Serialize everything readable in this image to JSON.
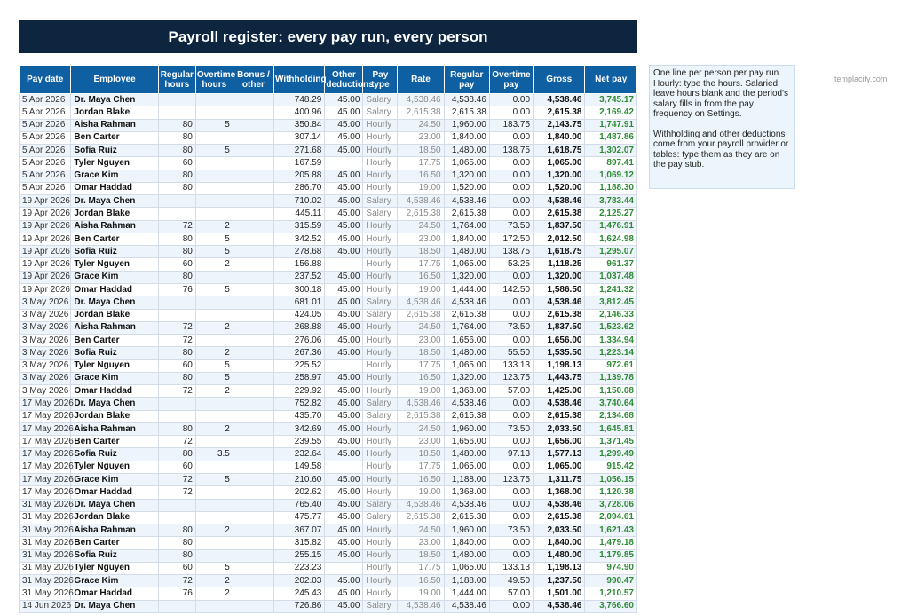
{
  "title": "Payroll register: every pay run, every person",
  "brand": "templacity.com",
  "note": {
    "p1": "One line per person per pay run. Hourly: type the hours. Salaried: leave hours blank and the period's salary fills in from the pay frequency on Settings.",
    "p2": "Withholding and other deductions come from your payroll provider or tables: type them as they are on the pay stub."
  },
  "table": {
    "headers": [
      "Pay date",
      "Employee",
      "Regular hours",
      "Overtime hours",
      "Bonus / other",
      "Withholding",
      "Other deductions",
      "Pay type",
      "Rate",
      "Regular pay",
      "Overtime pay",
      "Gross",
      "Net pay"
    ],
    "rows": [
      [
        "5 Apr 2026",
        "Dr. Maya Chen",
        "",
        "",
        "",
        "748.29",
        "45.00",
        "Salary",
        "4,538.46",
        "4,538.46",
        "0.00",
        "4,538.46",
        "3,745.17"
      ],
      [
        "5 Apr 2026",
        "Jordan Blake",
        "",
        "",
        "",
        "400.96",
        "45.00",
        "Salary",
        "2,615.38",
        "2,615.38",
        "0.00",
        "2,615.38",
        "2,169.42"
      ],
      [
        "5 Apr 2026",
        "Aisha Rahman",
        "80",
        "5",
        "",
        "350.84",
        "45.00",
        "Hourly",
        "24.50",
        "1,960.00",
        "183.75",
        "2,143.75",
        "1,747.91"
      ],
      [
        "5 Apr 2026",
        "Ben Carter",
        "80",
        "",
        "",
        "307.14",
        "45.00",
        "Hourly",
        "23.00",
        "1,840.00",
        "0.00",
        "1,840.00",
        "1,487.86"
      ],
      [
        "5 Apr 2026",
        "Sofia Ruiz",
        "80",
        "5",
        "",
        "271.68",
        "45.00",
        "Hourly",
        "18.50",
        "1,480.00",
        "138.75",
        "1,618.75",
        "1,302.07"
      ],
      [
        "5 Apr 2026",
        "Tyler Nguyen",
        "60",
        "",
        "",
        "167.59",
        "",
        "Hourly",
        "17.75",
        "1,065.00",
        "0.00",
        "1,065.00",
        "897.41"
      ],
      [
        "5 Apr 2026",
        "Grace Kim",
        "80",
        "",
        "",
        "205.88",
        "45.00",
        "Hourly",
        "16.50",
        "1,320.00",
        "0.00",
        "1,320.00",
        "1,069.12"
      ],
      [
        "5 Apr 2026",
        "Omar Haddad",
        "80",
        "",
        "",
        "286.70",
        "45.00",
        "Hourly",
        "19.00",
        "1,520.00",
        "0.00",
        "1,520.00",
        "1,188.30"
      ],
      [
        "19 Apr 2026",
        "Dr. Maya Chen",
        "",
        "",
        "",
        "710.02",
        "45.00",
        "Salary",
        "4,538.46",
        "4,538.46",
        "0.00",
        "4,538.46",
        "3,783.44"
      ],
      [
        "19 Apr 2026",
        "Jordan Blake",
        "",
        "",
        "",
        "445.11",
        "45.00",
        "Salary",
        "2,615.38",
        "2,615.38",
        "0.00",
        "2,615.38",
        "2,125.27"
      ],
      [
        "19 Apr 2026",
        "Aisha Rahman",
        "72",
        "2",
        "",
        "315.59",
        "45.00",
        "Hourly",
        "24.50",
        "1,764.00",
        "73.50",
        "1,837.50",
        "1,476.91"
      ],
      [
        "19 Apr 2026",
        "Ben Carter",
        "80",
        "5",
        "",
        "342.52",
        "45.00",
        "Hourly",
        "23.00",
        "1,840.00",
        "172.50",
        "2,012.50",
        "1,624.98"
      ],
      [
        "19 Apr 2026",
        "Sofia Ruiz",
        "80",
        "5",
        "",
        "278.68",
        "45.00",
        "Hourly",
        "18.50",
        "1,480.00",
        "138.75",
        "1,618.75",
        "1,295.07"
      ],
      [
        "19 Apr 2026",
        "Tyler Nguyen",
        "60",
        "2",
        "",
        "156.88",
        "",
        "Hourly",
        "17.75",
        "1,065.00",
        "53.25",
        "1,118.25",
        "961.37"
      ],
      [
        "19 Apr 2026",
        "Grace Kim",
        "80",
        "",
        "",
        "237.52",
        "45.00",
        "Hourly",
        "16.50",
        "1,320.00",
        "0.00",
        "1,320.00",
        "1,037.48"
      ],
      [
        "19 Apr 2026",
        "Omar Haddad",
        "76",
        "5",
        "",
        "300.18",
        "45.00",
        "Hourly",
        "19.00",
        "1,444.00",
        "142.50",
        "1,586.50",
        "1,241.32"
      ],
      [
        "3 May 2026",
        "Dr. Maya Chen",
        "",
        "",
        "",
        "681.01",
        "45.00",
        "Salary",
        "4,538.46",
        "4,538.46",
        "0.00",
        "4,538.46",
        "3,812.45"
      ],
      [
        "3 May 2026",
        "Jordan Blake",
        "",
        "",
        "",
        "424.05",
        "45.00",
        "Salary",
        "2,615.38",
        "2,615.38",
        "0.00",
        "2,615.38",
        "2,146.33"
      ],
      [
        "3 May 2026",
        "Aisha Rahman",
        "72",
        "2",
        "",
        "268.88",
        "45.00",
        "Hourly",
        "24.50",
        "1,764.00",
        "73.50",
        "1,837.50",
        "1,523.62"
      ],
      [
        "3 May 2026",
        "Ben Carter",
        "72",
        "",
        "",
        "276.06",
        "45.00",
        "Hourly",
        "23.00",
        "1,656.00",
        "0.00",
        "1,656.00",
        "1,334.94"
      ],
      [
        "3 May 2026",
        "Sofia Ruiz",
        "80",
        "2",
        "",
        "267.36",
        "45.00",
        "Hourly",
        "18.50",
        "1,480.00",
        "55.50",
        "1,535.50",
        "1,223.14"
      ],
      [
        "3 May 2026",
        "Tyler Nguyen",
        "60",
        "5",
        "",
        "225.52",
        "",
        "Hourly",
        "17.75",
        "1,065.00",
        "133.13",
        "1,198.13",
        "972.61"
      ],
      [
        "3 May 2026",
        "Grace Kim",
        "80",
        "5",
        "",
        "258.97",
        "45.00",
        "Hourly",
        "16.50",
        "1,320.00",
        "123.75",
        "1,443.75",
        "1,139.78"
      ],
      [
        "3 May 2026",
        "Omar Haddad",
        "72",
        "2",
        "",
        "229.92",
        "45.00",
        "Hourly",
        "19.00",
        "1,368.00",
        "57.00",
        "1,425.00",
        "1,150.08"
      ],
      [
        "17 May 2026",
        "Dr. Maya Chen",
        "",
        "",
        "",
        "752.82",
        "45.00",
        "Salary",
        "4,538.46",
        "4,538.46",
        "0.00",
        "4,538.46",
        "3,740.64"
      ],
      [
        "17 May 2026",
        "Jordan Blake",
        "",
        "",
        "",
        "435.70",
        "45.00",
        "Salary",
        "2,615.38",
        "2,615.38",
        "0.00",
        "2,615.38",
        "2,134.68"
      ],
      [
        "17 May 2026",
        "Aisha Rahman",
        "80",
        "2",
        "",
        "342.69",
        "45.00",
        "Hourly",
        "24.50",
        "1,960.00",
        "73.50",
        "2,033.50",
        "1,645.81"
      ],
      [
        "17 May 2026",
        "Ben Carter",
        "72",
        "",
        "",
        "239.55",
        "45.00",
        "Hourly",
        "23.00",
        "1,656.00",
        "0.00",
        "1,656.00",
        "1,371.45"
      ],
      [
        "17 May 2026",
        "Sofia Ruiz",
        "80",
        "3.5",
        "",
        "232.64",
        "45.00",
        "Hourly",
        "18.50",
        "1,480.00",
        "97.13",
        "1,577.13",
        "1,299.49"
      ],
      [
        "17 May 2026",
        "Tyler Nguyen",
        "60",
        "",
        "",
        "149.58",
        "",
        "Hourly",
        "17.75",
        "1,065.00",
        "0.00",
        "1,065.00",
        "915.42"
      ],
      [
        "17 May 2026",
        "Grace Kim",
        "72",
        "5",
        "",
        "210.60",
        "45.00",
        "Hourly",
        "16.50",
        "1,188.00",
        "123.75",
        "1,311.75",
        "1,056.15"
      ],
      [
        "17 May 2026",
        "Omar Haddad",
        "72",
        "",
        "",
        "202.62",
        "45.00",
        "Hourly",
        "19.00",
        "1,368.00",
        "0.00",
        "1,368.00",
        "1,120.38"
      ],
      [
        "31 May 2026",
        "Dr. Maya Chen",
        "",
        "",
        "",
        "765.40",
        "45.00",
        "Salary",
        "4,538.46",
        "4,538.46",
        "0.00",
        "4,538.46",
        "3,728.06"
      ],
      [
        "31 May 2026",
        "Jordan Blake",
        "",
        "",
        "",
        "475.77",
        "45.00",
        "Salary",
        "2,615.38",
        "2,615.38",
        "0.00",
        "2,615.38",
        "2,094.61"
      ],
      [
        "31 May 2026",
        "Aisha Rahman",
        "80",
        "2",
        "",
        "367.07",
        "45.00",
        "Hourly",
        "24.50",
        "1,960.00",
        "73.50",
        "2,033.50",
        "1,621.43"
      ],
      [
        "31 May 2026",
        "Ben Carter",
        "80",
        "",
        "",
        "315.82",
        "45.00",
        "Hourly",
        "23.00",
        "1,840.00",
        "0.00",
        "1,840.00",
        "1,479.18"
      ],
      [
        "31 May 2026",
        "Sofia Ruiz",
        "80",
        "",
        "",
        "255.15",
        "45.00",
        "Hourly",
        "18.50",
        "1,480.00",
        "0.00",
        "1,480.00",
        "1,179.85"
      ],
      [
        "31 May 2026",
        "Tyler Nguyen",
        "60",
        "5",
        "",
        "223.23",
        "",
        "Hourly",
        "17.75",
        "1,065.00",
        "133.13",
        "1,198.13",
        "974.90"
      ],
      [
        "31 May 2026",
        "Grace Kim",
        "72",
        "2",
        "",
        "202.03",
        "45.00",
        "Hourly",
        "16.50",
        "1,188.00",
        "49.50",
        "1,237.50",
        "990.47"
      ],
      [
        "31 May 2026",
        "Omar Haddad",
        "76",
        "2",
        "",
        "245.43",
        "45.00",
        "Hourly",
        "19.00",
        "1,444.00",
        "57.00",
        "1,501.00",
        "1,210.57"
      ],
      [
        "14 Jun 2026",
        "Dr. Maya Chen",
        "",
        "",
        "",
        "726.86",
        "45.00",
        "Salary",
        "4,538.46",
        "4,538.46",
        "0.00",
        "4,538.46",
        "3,766.60"
      ]
    ]
  }
}
